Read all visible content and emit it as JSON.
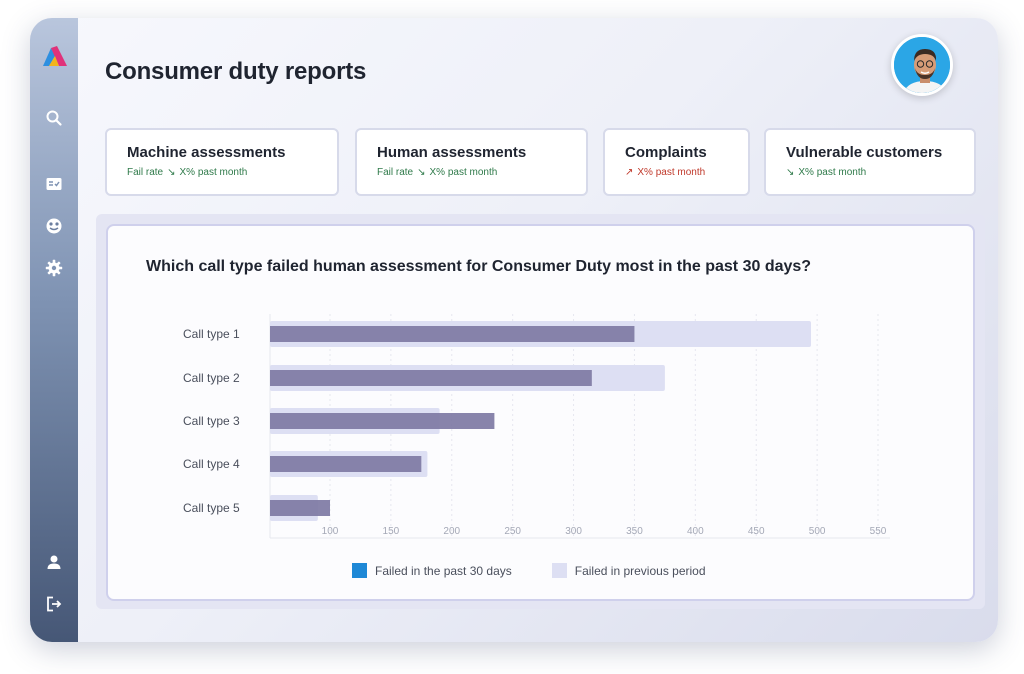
{
  "page": {
    "title": "Consumer duty reports"
  },
  "sidebar": {
    "items": [
      {
        "icon": "search-icon"
      },
      {
        "icon": "checklist-icon"
      },
      {
        "icon": "dashboard-icon"
      },
      {
        "icon": "gear-icon"
      },
      {
        "icon": "user-icon"
      },
      {
        "icon": "logout-icon"
      }
    ]
  },
  "kpis": [
    {
      "title": "Machine assessments",
      "label": "Fail rate",
      "trend": "down",
      "change": "X% past month"
    },
    {
      "title": "Human assessments",
      "label": "Fail rate",
      "trend": "down",
      "change": "X% past month"
    },
    {
      "title": "Complaints",
      "label": "",
      "trend": "up",
      "change": "X% past month"
    },
    {
      "title": "Vulnerable customers",
      "label": "",
      "trend": "down",
      "change": "X% past month"
    }
  ],
  "colors": {
    "current": "#7e7aa4",
    "previous": "#dddff3",
    "legend_current": "#1e88d6",
    "legend_previous": "#dddff3",
    "trend_down": "#2f7a4a",
    "trend_up": "#c0392b"
  },
  "chart_data": {
    "type": "bar",
    "orientation": "horizontal",
    "title": "Which call type failed human assessment for Consumer Duty most in the past 30 days?",
    "categories": [
      "Call type 1",
      "Call type 2",
      "Call type 3",
      "Call type 4",
      "Call type 5"
    ],
    "series": [
      {
        "name": "Failed in the past 30 days",
        "values": [
          350,
          315,
          235,
          175,
          100
        ]
      },
      {
        "name": "Failed in previous period",
        "values": [
          495,
          375,
          190,
          180,
          90
        ]
      }
    ],
    "xticks": [
      100,
      150,
      200,
      250,
      300,
      350,
      400,
      450,
      500,
      550
    ],
    "xlim": [
      50,
      550
    ],
    "grid": true,
    "legend_position": "bottom"
  }
}
